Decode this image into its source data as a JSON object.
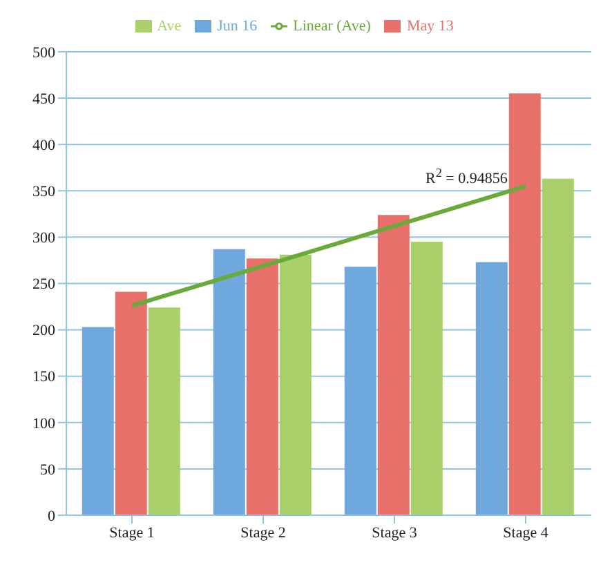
{
  "chart_data": {
    "type": "bar",
    "categories": [
      "Stage 1",
      "Stage 2",
      "Stage 3",
      "Stage 4"
    ],
    "series": [
      {
        "name": "Jun 16",
        "color": "#6fa8dc",
        "values": [
          203,
          287,
          268,
          273
        ]
      },
      {
        "name": "May 13",
        "color": "#e8706a",
        "values": [
          241,
          277,
          324,
          455
        ]
      },
      {
        "name": "Ave",
        "color": "#a9d06a",
        "values": [
          224,
          281,
          295,
          363
        ]
      },
      {
        "name": "Linear (Ave)",
        "type": "line",
        "color": "#6aaa3a",
        "x": [
          "Stage 1",
          "Stage 4"
        ],
        "values": [
          226,
          355
        ]
      }
    ],
    "ylim": [
      0,
      500
    ],
    "yticks": [
      0,
      50,
      100,
      150,
      200,
      250,
      300,
      350,
      400,
      450,
      500
    ],
    "grid": "y",
    "legend": "top",
    "annotations": [
      "R$^{2}$ = 0.94856"
    ]
  }
}
